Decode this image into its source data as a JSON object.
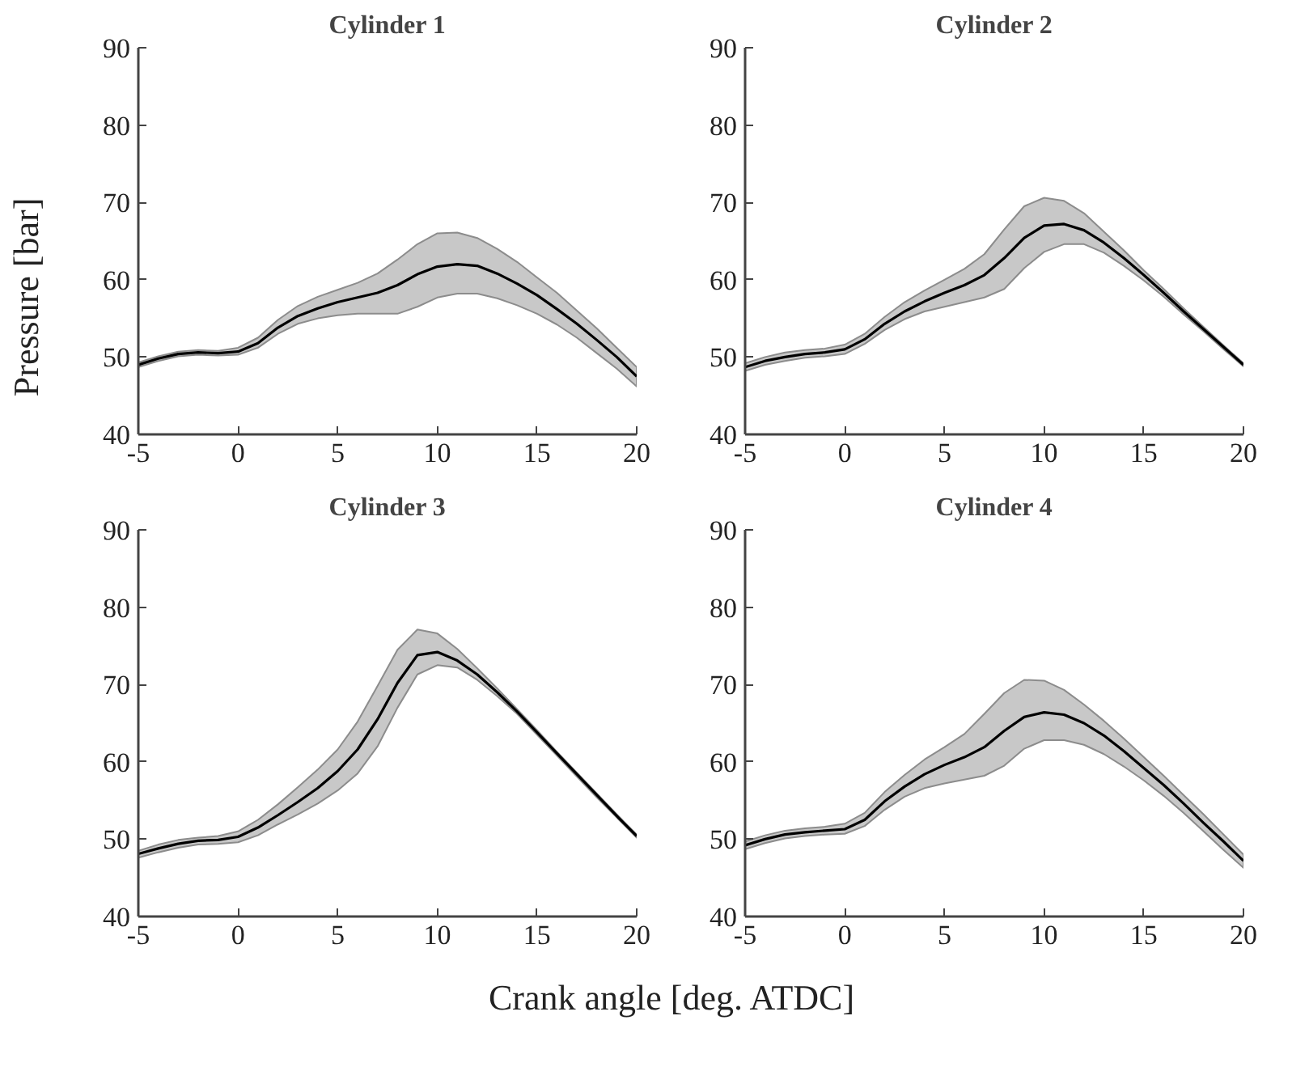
{
  "chart_data": [
    {
      "type": "line",
      "title": "Cylinder 1",
      "ylabel": "Pressure [bar]",
      "x": [
        -5,
        -4,
        -3,
        -2,
        -1,
        0,
        1,
        2,
        3,
        4,
        5,
        6,
        7,
        8,
        9,
        10,
        11,
        12,
        13,
        14,
        15,
        16,
        17,
        18,
        19,
        20
      ],
      "xlim": [
        -5,
        20
      ],
      "xticks": [
        -5,
        0,
        5,
        10,
        15,
        20
      ],
      "ylim": [
        40,
        90
      ],
      "yticks": [
        40,
        50,
        60,
        70,
        80,
        90
      ],
      "grid": false,
      "marker": "none",
      "line_style": "solid",
      "series": [
        {
          "color": "#000000",
          "values": [
            49,
            49.8,
            50.4,
            50.6,
            50.5,
            50.7,
            51.8,
            53.8,
            55.3,
            56.3,
            57.1,
            57.7,
            58.3,
            59.3,
            60.7,
            61.7,
            62,
            61.8,
            60.8,
            59.5,
            58,
            56.2,
            54.3,
            52.2,
            50,
            47.5
          ],
          "upper": [
            49.3,
            50.1,
            50.7,
            50.9,
            50.8,
            51.2,
            52.5,
            54.8,
            56.6,
            57.8,
            58.7,
            59.6,
            60.8,
            62.6,
            64.6,
            66,
            66.1,
            65.4,
            64,
            62.3,
            60.3,
            58.3,
            56,
            53.7,
            51.2,
            48.7
          ],
          "lower": [
            48.7,
            49.5,
            50.1,
            50.3,
            50.2,
            50.3,
            51.2,
            53,
            54.3,
            55,
            55.4,
            55.6,
            55.6,
            55.6,
            56.5,
            57.7,
            58.2,
            58.2,
            57.6,
            56.7,
            55.6,
            54.2,
            52.5,
            50.5,
            48.5,
            46.2
          ]
        }
      ]
    },
    {
      "type": "line",
      "title": "Cylinder 2",
      "x": [
        -5,
        -4,
        -3,
        -2,
        -1,
        0,
        1,
        2,
        3,
        4,
        5,
        6,
        7,
        8,
        9,
        10,
        11,
        12,
        13,
        14,
        15,
        16,
        17,
        18,
        19,
        20
      ],
      "xlim": [
        -5,
        20
      ],
      "xticks": [
        -5,
        0,
        5,
        10,
        15,
        20
      ],
      "ylim": [
        40,
        90
      ],
      "yticks": [
        40,
        50,
        60,
        70,
        80,
        90
      ],
      "grid": false,
      "marker": "none",
      "line_style": "solid",
      "series": [
        {
          "color": "#000000",
          "values": [
            48.7,
            49.5,
            50,
            50.4,
            50.6,
            51,
            52.3,
            54.3,
            55.9,
            57.2,
            58.3,
            59.3,
            60.6,
            62.8,
            65.4,
            67,
            67.2,
            66.4,
            64.8,
            62.8,
            60.6,
            58.3,
            55.9,
            53.6,
            51.3,
            49
          ],
          "upper": [
            49.2,
            50,
            50.6,
            50.9,
            51.1,
            51.6,
            53,
            55.2,
            57.1,
            58.6,
            60,
            61.4,
            63.3,
            66.5,
            69.5,
            70.6,
            70.2,
            68.6,
            66.2,
            63.8,
            61.2,
            58.8,
            56.3,
            53.9,
            51.5,
            49.2
          ],
          "lower": [
            48.2,
            49,
            49.5,
            49.9,
            50.1,
            50.4,
            51.7,
            53.5,
            54.9,
            55.9,
            56.5,
            57.1,
            57.7,
            58.8,
            61.5,
            63.6,
            64.6,
            64.6,
            63.5,
            61.8,
            59.9,
            57.8,
            55.5,
            53.3,
            51,
            48.8
          ]
        }
      ]
    },
    {
      "type": "line",
      "title": "Cylinder 3",
      "xlabel": "Crank angle [deg. ATDC]",
      "x": [
        -5,
        -4,
        -3,
        -2,
        -1,
        0,
        1,
        2,
        3,
        4,
        5,
        6,
        7,
        8,
        9,
        10,
        11,
        12,
        13,
        14,
        15,
        16,
        17,
        18,
        19,
        20
      ],
      "xlim": [
        -5,
        20
      ],
      "xticks": [
        -5,
        0,
        5,
        10,
        15,
        20
      ],
      "ylim": [
        40,
        90
      ],
      "yticks": [
        40,
        50,
        60,
        70,
        80,
        90
      ],
      "grid": false,
      "marker": "none",
      "line_style": "solid",
      "series": [
        {
          "color": "#000000",
          "values": [
            48.1,
            48.8,
            49.4,
            49.8,
            49.9,
            50.3,
            51.5,
            53.1,
            54.8,
            56.6,
            58.8,
            61.6,
            65.5,
            70.2,
            73.8,
            74.2,
            73.1,
            71.3,
            69,
            66.5,
            63.8,
            61.1,
            58.4,
            55.7,
            53,
            50.4
          ],
          "upper": [
            48.5,
            49.3,
            49.9,
            50.2,
            50.4,
            51,
            52.5,
            54.5,
            56.7,
            59,
            61.6,
            65.2,
            69.8,
            74.5,
            77.1,
            76.6,
            74.6,
            72.1,
            69.5,
            66.8,
            64.1,
            61.3,
            58.6,
            55.9,
            53.2,
            50.6
          ],
          "lower": [
            47.6,
            48.3,
            48.9,
            49.3,
            49.4,
            49.6,
            50.5,
            51.9,
            53.2,
            54.6,
            56.3,
            58.5,
            62,
            67,
            71.3,
            72.5,
            72.2,
            70.6,
            68.5,
            66.2,
            63.5,
            60.8,
            58.1,
            55.4,
            52.8,
            50.2
          ]
        }
      ]
    },
    {
      "type": "line",
      "title": "Cylinder 4",
      "x": [
        -5,
        -4,
        -3,
        -2,
        -1,
        0,
        1,
        2,
        3,
        4,
        5,
        6,
        7,
        8,
        9,
        10,
        11,
        12,
        13,
        14,
        15,
        16,
        17,
        18,
        19,
        20
      ],
      "xlim": [
        -5,
        20
      ],
      "xticks": [
        -5,
        0,
        5,
        10,
        15,
        20
      ],
      "ylim": [
        40,
        90
      ],
      "yticks": [
        40,
        50,
        60,
        70,
        80,
        90
      ],
      "grid": false,
      "marker": "none",
      "line_style": "solid",
      "series": [
        {
          "color": "#000000",
          "values": [
            49.2,
            50,
            50.6,
            50.9,
            51.1,
            51.3,
            52.5,
            54.9,
            56.8,
            58.4,
            59.6,
            60.6,
            61.9,
            64,
            65.8,
            66.4,
            66.1,
            65,
            63.4,
            61.4,
            59.2,
            57,
            54.6,
            52.1,
            49.7,
            47.2
          ],
          "upper": [
            49.7,
            50.5,
            51.1,
            51.4,
            51.6,
            52,
            53.4,
            56.1,
            58.3,
            60.3,
            61.9,
            63.6,
            66.2,
            68.9,
            70.6,
            70.5,
            69.3,
            67.4,
            65.3,
            63,
            60.6,
            58.2,
            55.7,
            53.2,
            50.6,
            48
          ],
          "lower": [
            48.7,
            49.5,
            50.1,
            50.4,
            50.6,
            50.7,
            51.7,
            53.8,
            55.5,
            56.6,
            57.2,
            57.7,
            58.2,
            59.5,
            61.7,
            62.8,
            62.8,
            62.2,
            61,
            59.4,
            57.6,
            55.6,
            53.4,
            51,
            48.6,
            46.3
          ]
        }
      ]
    }
  ]
}
